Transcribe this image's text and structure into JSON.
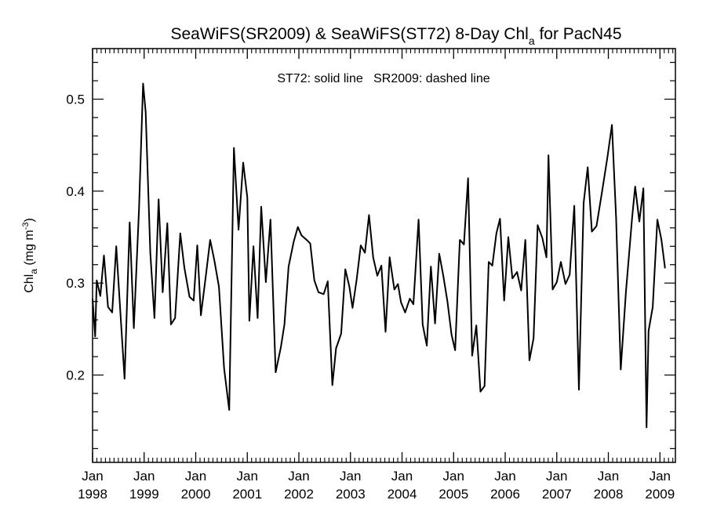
{
  "chart_data": {
    "type": "line",
    "title": {
      "main": "SeaWiFS(SR2009) & SeaWiFS(ST72) 8-Day Chl",
      "sub": "a",
      "suffix": " for PacN45"
    },
    "annotation": "ST72: solid line   SR2009: dashed line",
    "ylabel": {
      "main": "Chl",
      "sub": "a",
      "units_open": " (mg m",
      "sup": "-3",
      "units_close": ")"
    },
    "xlim": [
      1998.0,
      2009.3
    ],
    "ylim": [
      0.105,
      0.555
    ],
    "y_ticks": [
      0.2,
      0.3,
      0.4,
      0.5
    ],
    "y_tick_labels": [
      "0.2",
      "0.3",
      "0.4",
      "0.5"
    ],
    "x_ticks": [
      1998,
      1999,
      2000,
      2001,
      2002,
      2003,
      2004,
      2005,
      2006,
      2007,
      2008,
      2009
    ],
    "x_tick_labels": [
      {
        "month": "Jan",
        "year": "1998"
      },
      {
        "month": "Jan",
        "year": "1999"
      },
      {
        "month": "Jan",
        "year": "2000"
      },
      {
        "month": "Jan",
        "year": "2001"
      },
      {
        "month": "Jan",
        "year": "2002"
      },
      {
        "month": "Jan",
        "year": "2003"
      },
      {
        "month": "Jan",
        "year": "2004"
      },
      {
        "month": "Jan",
        "year": "2005"
      },
      {
        "month": "Jan",
        "year": "2006"
      },
      {
        "month": "Jan",
        "year": "2007"
      },
      {
        "month": "Jan",
        "year": "2008"
      },
      {
        "month": "Jan",
        "year": "2009"
      }
    ],
    "grid": false,
    "series": [
      {
        "style": "solid",
        "color": "#000000",
        "points": [
          [
            1998.0,
            0.283
          ],
          [
            1998.05,
            0.242
          ],
          [
            1998.08,
            0.303
          ],
          [
            1998.15,
            0.286
          ],
          [
            1998.22,
            0.33
          ],
          [
            1998.3,
            0.274
          ],
          [
            1998.38,
            0.268
          ],
          [
            1998.46,
            0.34
          ],
          [
            1998.55,
            0.258
          ],
          [
            1998.62,
            0.196
          ],
          [
            1998.72,
            0.366
          ],
          [
            1998.8,
            0.251
          ],
          [
            1998.9,
            0.38
          ],
          [
            1998.98,
            0.517
          ],
          [
            1999.03,
            0.486
          ],
          [
            1999.12,
            0.333
          ],
          [
            1999.2,
            0.262
          ],
          [
            1999.28,
            0.391
          ],
          [
            1999.36,
            0.29
          ],
          [
            1999.45,
            0.365
          ],
          [
            1999.52,
            0.255
          ],
          [
            1999.6,
            0.262
          ],
          [
            1999.7,
            0.354
          ],
          [
            1999.78,
            0.317
          ],
          [
            1999.88,
            0.285
          ],
          [
            1999.96,
            0.281
          ],
          [
            2000.03,
            0.341
          ],
          [
            2000.1,
            0.265
          ],
          [
            2000.2,
            0.31
          ],
          [
            2000.28,
            0.347
          ],
          [
            2000.36,
            0.325
          ],
          [
            2000.45,
            0.296
          ],
          [
            2000.55,
            0.207
          ],
          [
            2000.65,
            0.162
          ],
          [
            2000.74,
            0.447
          ],
          [
            2000.83,
            0.358
          ],
          [
            2000.92,
            0.431
          ],
          [
            2001.0,
            0.393
          ],
          [
            2001.04,
            0.259
          ],
          [
            2001.12,
            0.34
          ],
          [
            2001.2,
            0.262
          ],
          [
            2001.27,
            0.383
          ],
          [
            2001.36,
            0.301
          ],
          [
            2001.45,
            0.369
          ],
          [
            2001.55,
            0.203
          ],
          [
            2001.65,
            0.23
          ],
          [
            2001.72,
            0.255
          ],
          [
            2001.8,
            0.318
          ],
          [
            2001.9,
            0.345
          ],
          [
            2001.98,
            0.361
          ],
          [
            2002.05,
            0.352
          ],
          [
            2002.15,
            0.347
          ],
          [
            2002.22,
            0.343
          ],
          [
            2002.3,
            0.303
          ],
          [
            2002.38,
            0.29
          ],
          [
            2002.48,
            0.288
          ],
          [
            2002.56,
            0.302
          ],
          [
            2002.65,
            0.189
          ],
          [
            2002.72,
            0.229
          ],
          [
            2002.82,
            0.245
          ],
          [
            2002.9,
            0.315
          ],
          [
            2002.98,
            0.296
          ],
          [
            2003.04,
            0.273
          ],
          [
            2003.12,
            0.304
          ],
          [
            2003.2,
            0.341
          ],
          [
            2003.28,
            0.333
          ],
          [
            2003.36,
            0.374
          ],
          [
            2003.44,
            0.328
          ],
          [
            2003.52,
            0.308
          ],
          [
            2003.6,
            0.319
          ],
          [
            2003.68,
            0.247
          ],
          [
            2003.76,
            0.328
          ],
          [
            2003.85,
            0.293
          ],
          [
            2003.92,
            0.299
          ],
          [
            2003.98,
            0.279
          ],
          [
            2004.06,
            0.268
          ],
          [
            2004.15,
            0.283
          ],
          [
            2004.22,
            0.277
          ],
          [
            2004.32,
            0.369
          ],
          [
            2004.4,
            0.255
          ],
          [
            2004.48,
            0.232
          ],
          [
            2004.56,
            0.318
          ],
          [
            2004.64,
            0.256
          ],
          [
            2004.72,
            0.332
          ],
          [
            2004.8,
            0.308
          ],
          [
            2004.88,
            0.28
          ],
          [
            2004.96,
            0.244
          ],
          [
            2005.03,
            0.227
          ],
          [
            2005.12,
            0.347
          ],
          [
            2005.2,
            0.342
          ],
          [
            2005.28,
            0.414
          ],
          [
            2005.36,
            0.221
          ],
          [
            2005.44,
            0.254
          ],
          [
            2005.52,
            0.182
          ],
          [
            2005.6,
            0.188
          ],
          [
            2005.68,
            0.323
          ],
          [
            2005.75,
            0.319
          ],
          [
            2005.83,
            0.354
          ],
          [
            2005.9,
            0.37
          ],
          [
            2005.98,
            0.281
          ],
          [
            2006.06,
            0.35
          ],
          [
            2006.14,
            0.305
          ],
          [
            2006.23,
            0.312
          ],
          [
            2006.31,
            0.292
          ],
          [
            2006.39,
            0.347
          ],
          [
            2006.47,
            0.216
          ],
          [
            2006.55,
            0.24
          ],
          [
            2006.63,
            0.363
          ],
          [
            2006.72,
            0.349
          ],
          [
            2006.8,
            0.328
          ],
          [
            2006.84,
            0.439
          ],
          [
            2006.92,
            0.293
          ],
          [
            2007.0,
            0.301
          ],
          [
            2007.08,
            0.323
          ],
          [
            2007.17,
            0.299
          ],
          [
            2007.25,
            0.309
          ],
          [
            2007.34,
            0.384
          ],
          [
            2007.43,
            0.184
          ],
          [
            2007.52,
            0.387
          ],
          [
            2007.6,
            0.426
          ],
          [
            2007.68,
            0.356
          ],
          [
            2007.77,
            0.362
          ],
          [
            2007.88,
            0.4
          ],
          [
            2007.98,
            0.436
          ],
          [
            2008.07,
            0.472
          ],
          [
            2008.15,
            0.371
          ],
          [
            2008.24,
            0.206
          ],
          [
            2008.34,
            0.29
          ],
          [
            2008.46,
            0.371
          ],
          [
            2008.52,
            0.405
          ],
          [
            2008.6,
            0.367
          ],
          [
            2008.68,
            0.403
          ],
          [
            2008.74,
            0.143
          ],
          [
            2008.78,
            0.248
          ],
          [
            2008.86,
            0.274
          ],
          [
            2008.95,
            0.369
          ],
          [
            2009.03,
            0.347
          ],
          [
            2009.1,
            0.316
          ]
        ]
      }
    ]
  }
}
